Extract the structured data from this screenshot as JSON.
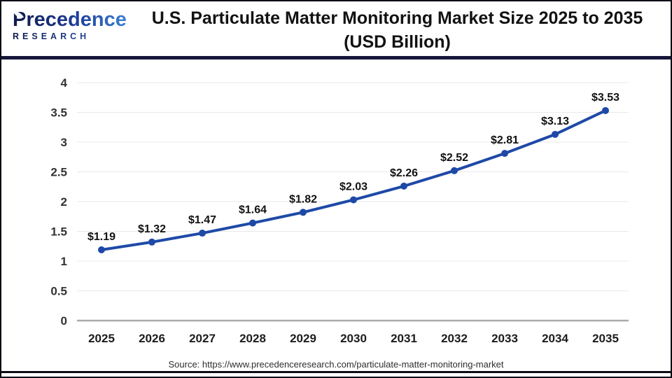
{
  "logo": {
    "brand": "Precedence",
    "sub": "RESEARCH"
  },
  "header": {
    "title_line1": "U.S. Particulate Matter Monitoring Market Size 2025 to 2035",
    "title_line2": "(USD Billion)"
  },
  "source_text": "Source: https://www.precedenceresearch.com/particulate-matter-monitoring-market",
  "chart_data": {
    "type": "line",
    "title": "U.S. Particulate Matter Monitoring Market Size 2025 to 2035 (USD Billion)",
    "categories": [
      "2025",
      "2026",
      "2027",
      "2028",
      "2029",
      "2030",
      "2031",
      "2032",
      "2033",
      "2034",
      "2035"
    ],
    "values": [
      1.19,
      1.32,
      1.47,
      1.64,
      1.82,
      2.03,
      2.26,
      2.52,
      2.81,
      3.13,
      3.53
    ],
    "point_labels": [
      "$1.19",
      "$1.32",
      "$1.47",
      "$1.64",
      "$1.82",
      "$2.03",
      "$2.26",
      "$2.52",
      "$2.81",
      "$3.13",
      "$3.53"
    ],
    "xlabel": "",
    "ylabel": "",
    "ylim": [
      0,
      4
    ],
    "ytick_step": 0.5,
    "yticks": [
      "0",
      "0.5",
      "1",
      "1.5",
      "2",
      "2.5",
      "3",
      "3.5",
      "4"
    ],
    "grid": true,
    "legend": "none",
    "marker": "circle",
    "line_color": "#1e49a7",
    "grid_color": "#e8e8e8",
    "axis_line_color": "#ababab"
  },
  "colors": {
    "divider": "#16163c",
    "frame_border": "#0c0c14",
    "title_text": "#121212"
  }
}
